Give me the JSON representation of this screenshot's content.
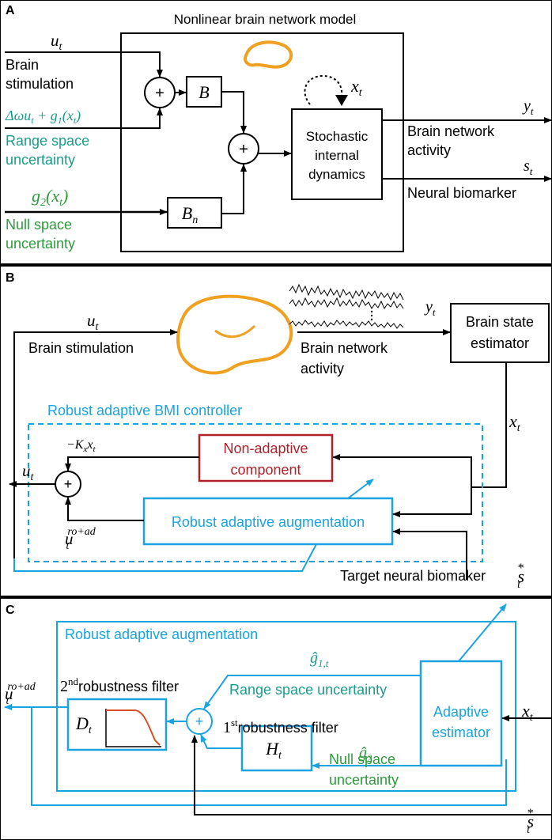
{
  "panel_a": {
    "letter": "A",
    "title": "Nonlinear brain network model",
    "u": "u",
    "u_sub": "t",
    "brain_stim_1": "Brain",
    "brain_stim_2": "stimulation",
    "range_expr": "Δωu",
    "range_expr_sub": "t",
    "range_expr_rest": " + g",
    "range_expr_sub2": "1",
    "range_expr_end": "(x",
    "range_expr_sub3": "t",
    "range_expr_close": ")",
    "range_label_1": "Range space",
    "range_label_2": "uncertainty",
    "g2": "g",
    "g2_sub": "2",
    "g2_arg": "(x",
    "g2_arg_sub": "t",
    "g2_close": ")",
    "null_label_1": "Null space",
    "null_label_2": "uncertainty",
    "plus": "+",
    "B": "B",
    "Bn": "B",
    "Bn_sub": "n",
    "x": "x",
    "x_sub": "t",
    "dyn_1": "Stochastic",
    "dyn_2": "internal",
    "dyn_3": "dynamics",
    "y": "y",
    "y_sub": "t",
    "act_1": "Brain network",
    "act_2": "activity",
    "s": "s",
    "s_sub": "t",
    "biomarker": "Neural biomarker"
  },
  "panel_b": {
    "letter": "B",
    "u": "u",
    "u_sub": "t",
    "brain_stim": "Brain stimulation",
    "y": "y",
    "y_sub": "t",
    "act_1": "Brain network",
    "act_2": "activity",
    "estimator_1": "Brain state",
    "estimator_2": "estimator",
    "x": "x",
    "x_sub": "t",
    "controller_title": "Robust adaptive BMI controller",
    "kx": "−K",
    "kx_sub": "x",
    "kx_rest": "x",
    "kx_rest_sub": "t",
    "non_adaptive_1": "Non-adaptive",
    "non_adaptive_2": "component",
    "u_out": "u",
    "u_out_sub": "t",
    "plus": "+",
    "aug": "Robust adaptive augmentation",
    "u_ro": "u",
    "u_ro_sub": "t",
    "u_ro_sup": "ro+ad",
    "target": "Target neural biomaker",
    "s": "s",
    "s_sub": "t",
    "s_sup": "*"
  },
  "panel_c": {
    "letter": "C",
    "title": "Robust adaptive augmentation",
    "g1": "ĝ",
    "g1_sub": "1,t",
    "range": "Range space uncertainty",
    "second_sup": "nd",
    "second_num": "2",
    "second_label": "robustness filter",
    "D": "D",
    "D_sub": "t",
    "first_num": "1",
    "first_sup": "st",
    "first_label": "robustness filter",
    "plus": "+",
    "H": "H",
    "H_sub": "t",
    "g2": "ĝ",
    "g2_sub": "2",
    "null_1": "Null space",
    "null_2": "uncertainty",
    "adaptive_1": "Adaptive",
    "adaptive_2": "estimator",
    "x": "x",
    "x_sub": "t",
    "u_ro": "u",
    "u_ro_sub": "t",
    "u_ro_sup": "ro+ad",
    "s": "s",
    "s_sub": "t",
    "s_sup": "*"
  },
  "colors": {
    "black": "#000000",
    "teal": "#1a9c8a",
    "green": "#2e9a3c",
    "blue": "#1aa3e0",
    "red": "#b2202a",
    "orange": "#f0a020",
    "filter_curve": "#d8502a"
  }
}
